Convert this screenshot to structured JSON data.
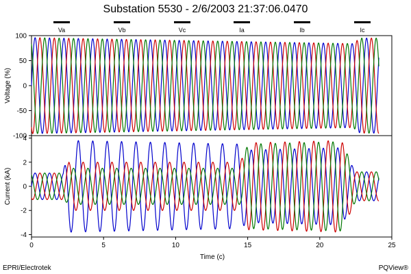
{
  "chart_data": {
    "type": "line",
    "title": "Substation 5530 - 2/6/2003 21:37:06.0470",
    "footer_left": "EPRI/Electrotek",
    "footer_right": "PQView®",
    "legend": [
      {
        "label": "Va",
        "color": "#0000cc"
      },
      {
        "label": "Vb",
        "color": "#cc0000"
      },
      {
        "label": "Vc",
        "color": "#007700"
      },
      {
        "label": "Ia",
        "color": "#0000cc"
      },
      {
        "label": "Ib",
        "color": "#cc0000"
      },
      {
        "label": "Ic",
        "color": "#007700"
      }
    ],
    "xlabel": "Time (c)",
    "xlim": [
      0,
      25
    ],
    "xticks": [
      0,
      5,
      10,
      15,
      20,
      25
    ],
    "x_end": 24.1,
    "grid": false,
    "panels": [
      {
        "name": "voltage",
        "ylabel": "Voltage (%)",
        "ylim": [
          -100,
          100
        ],
        "yticks": [
          100,
          50,
          0,
          -50,
          -100
        ],
        "series": [
          {
            "name": "Va",
            "color": "#0000cc",
            "phase_deg": 0,
            "amplitude_envelope": [
              [
                0,
                96
              ],
              [
                22.3,
                84
              ],
              [
                22.8,
                95
              ],
              [
                24.1,
                95
              ]
            ]
          },
          {
            "name": "Vb",
            "color": "#cc0000",
            "phase_deg": -120,
            "amplitude_envelope": [
              [
                0,
                96
              ],
              [
                22.3,
                84
              ],
              [
                22.8,
                95
              ],
              [
                24.1,
                95
              ]
            ]
          },
          {
            "name": "Vc",
            "color": "#007700",
            "phase_deg": 120,
            "amplitude_envelope": [
              [
                0,
                96
              ],
              [
                22.3,
                84
              ],
              [
                22.8,
                95
              ],
              [
                24.1,
                95
              ]
            ]
          }
        ]
      },
      {
        "name": "current",
        "ylabel": "Current (kA)",
        "ylim": [
          -4.2,
          4.2
        ],
        "yticks": [
          4,
          2,
          0,
          -2,
          -4
        ],
        "series": [
          {
            "name": "Ia",
            "color": "#0000cc",
            "phase_deg": 0,
            "amplitude_envelope": [
              [
                0,
                1.1
              ],
              [
                2.2,
                1.1
              ],
              [
                2.6,
                3.8
              ],
              [
                14.5,
                3.5
              ],
              [
                15.0,
                3.0
              ],
              [
                21.5,
                3.2
              ],
              [
                22.5,
                1.2
              ],
              [
                24.1,
                1.2
              ]
            ]
          },
          {
            "name": "Ib",
            "color": "#cc0000",
            "phase_deg": -120,
            "amplitude_envelope": [
              [
                0,
                1.1
              ],
              [
                2.2,
                1.1
              ],
              [
                2.6,
                2.0
              ],
              [
                14.5,
                2.0
              ],
              [
                15.0,
                3.6
              ],
              [
                21.5,
                3.8
              ],
              [
                22.5,
                1.2
              ],
              [
                24.1,
                1.2
              ]
            ]
          },
          {
            "name": "Ic",
            "color": "#007700",
            "phase_deg": 120,
            "amplitude_envelope": [
              [
                0,
                1.1
              ],
              [
                2.2,
                1.1
              ],
              [
                2.6,
                1.5
              ],
              [
                14.5,
                1.5
              ],
              [
                15.0,
                3.5
              ],
              [
                21.5,
                3.7
              ],
              [
                22.5,
                1.2
              ],
              [
                24.1,
                1.2
              ]
            ]
          }
        ]
      }
    ]
  }
}
